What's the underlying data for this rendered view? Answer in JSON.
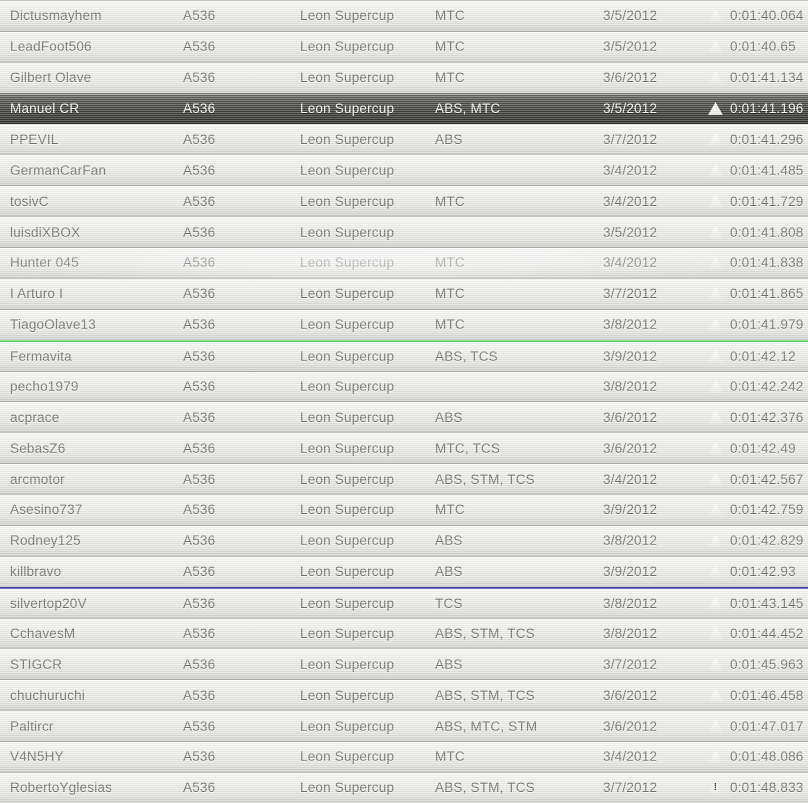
{
  "leaderboard": {
    "car_column_value": "A536",
    "event_column_value": "Leon Supercup",
    "colors": {
      "selected_row_bg": "#363632",
      "green_divider": "#5ed05e",
      "blue_divider": "#3434ae",
      "row_text": "#6b6b69",
      "selected_row_text": "#f5f5f3"
    },
    "warning_icon": {
      "name": "warning-triangle-icon",
      "glyph": "!"
    },
    "rows": [
      {
        "gamertag": "Dictusmayhem",
        "car": "A536",
        "event": "Leon Supercup",
        "assists": "MTC",
        "date": "3/5/2012",
        "time": "0:01:40.064",
        "state": "normal",
        "divider_before": "",
        "warning": false
      },
      {
        "gamertag": "LeadFoot506",
        "car": "A536",
        "event": "Leon Supercup",
        "assists": "MTC",
        "date": "3/5/2012",
        "time": "0:01:40.65",
        "state": "normal",
        "divider_before": "",
        "warning": false
      },
      {
        "gamertag": "Gilbert Olave",
        "car": "A536",
        "event": "Leon Supercup",
        "assists": "MTC",
        "date": "3/6/2012",
        "time": "0:01:41.134",
        "state": "normal",
        "divider_before": "",
        "warning": false
      },
      {
        "gamertag": "Manuel CR",
        "car": "A536",
        "event": "Leon Supercup",
        "assists": "ABS, MTC",
        "date": "3/5/2012",
        "time": "0:01:41.196",
        "state": "selected",
        "divider_before": "",
        "warning": false
      },
      {
        "gamertag": "PPEVIL",
        "car": "A536",
        "event": "Leon Supercup",
        "assists": "ABS",
        "date": "3/7/2012",
        "time": "0:01:41.296",
        "state": "normal",
        "divider_before": "",
        "warning": false
      },
      {
        "gamertag": "GermanCarFan",
        "car": "A536",
        "event": "Leon Supercup",
        "assists": "",
        "date": "3/4/2012",
        "time": "0:01:41.485",
        "state": "normal",
        "divider_before": "",
        "warning": false
      },
      {
        "gamertag": "tosivC",
        "car": "A536",
        "event": "Leon Supercup",
        "assists": "MTC",
        "date": "3/4/2012",
        "time": "0:01:41.729",
        "state": "normal",
        "divider_before": "",
        "warning": false
      },
      {
        "gamertag": "luisdiXBOX",
        "car": "A536",
        "event": "Leon Supercup",
        "assists": "",
        "date": "3/5/2012",
        "time": "0:01:41.808",
        "state": "normal",
        "divider_before": "",
        "warning": false
      },
      {
        "gamertag": "Hunter 045",
        "car": "A536",
        "event": "Leon Supercup",
        "assists": "MTC",
        "date": "3/4/2012",
        "time": "0:01:41.838",
        "state": "sheen",
        "divider_before": "",
        "warning": false
      },
      {
        "gamertag": "I Arturo I",
        "car": "A536",
        "event": "Leon Supercup",
        "assists": "MTC",
        "date": "3/7/2012",
        "time": "0:01:41.865",
        "state": "normal",
        "divider_before": "",
        "warning": false
      },
      {
        "gamertag": "TiagoOlave13",
        "car": "A536",
        "event": "Leon Supercup",
        "assists": "MTC",
        "date": "3/8/2012",
        "time": "0:01:41.979",
        "state": "normal",
        "divider_before": "",
        "warning": false
      },
      {
        "gamertag": "Fermavita",
        "car": "A536",
        "event": "Leon Supercup",
        "assists": "ABS, TCS",
        "date": "3/9/2012",
        "time": "0:01:42.12",
        "state": "normal",
        "divider_before": "green",
        "warning": false
      },
      {
        "gamertag": "pecho1979",
        "car": "A536",
        "event": "Leon Supercup",
        "assists": "",
        "date": "3/8/2012",
        "time": "0:01:42.242",
        "state": "normal",
        "divider_before": "",
        "warning": false
      },
      {
        "gamertag": "acprace",
        "car": "A536",
        "event": "Leon Supercup",
        "assists": "ABS",
        "date": "3/6/2012",
        "time": "0:01:42.376",
        "state": "normal",
        "divider_before": "",
        "warning": false
      },
      {
        "gamertag": "SebasZ6",
        "car": "A536",
        "event": "Leon Supercup",
        "assists": "MTC, TCS",
        "date": "3/6/2012",
        "time": "0:01:42.49",
        "state": "normal",
        "divider_before": "",
        "warning": false
      },
      {
        "gamertag": "arcmotor",
        "car": "A536",
        "event": "Leon Supercup",
        "assists": "ABS, STM, TCS",
        "date": "3/4/2012",
        "time": "0:01:42.567",
        "state": "normal",
        "divider_before": "",
        "warning": false
      },
      {
        "gamertag": "Asesino737",
        "car": "A536",
        "event": "Leon Supercup",
        "assists": "MTC",
        "date": "3/9/2012",
        "time": "0:01:42.759",
        "state": "normal",
        "divider_before": "",
        "warning": false
      },
      {
        "gamertag": "Rodney125",
        "car": "A536",
        "event": "Leon Supercup",
        "assists": "ABS",
        "date": "3/8/2012",
        "time": "0:01:42.829",
        "state": "normal",
        "divider_before": "",
        "warning": false
      },
      {
        "gamertag": "killbravo",
        "car": "A536",
        "event": "Leon Supercup",
        "assists": "ABS",
        "date": "3/9/2012",
        "time": "0:01:42.93",
        "state": "normal",
        "divider_before": "",
        "warning": false
      },
      {
        "gamertag": "silvertop20V",
        "car": "A536",
        "event": "Leon Supercup",
        "assists": "TCS",
        "date": "3/8/2012",
        "time": "0:01:43.145",
        "state": "normal",
        "divider_before": "blue",
        "warning": false
      },
      {
        "gamertag": "CchavesM",
        "car": "A536",
        "event": "Leon Supercup",
        "assists": "ABS, STM, TCS",
        "date": "3/8/2012",
        "time": "0:01:44.452",
        "state": "normal",
        "divider_before": "",
        "warning": false
      },
      {
        "gamertag": "STIGCR",
        "car": "A536",
        "event": "Leon Supercup",
        "assists": "ABS",
        "date": "3/7/2012",
        "time": "0:01:45.963",
        "state": "normal",
        "divider_before": "",
        "warning": false
      },
      {
        "gamertag": "chuchuruchi",
        "car": "A536",
        "event": "Leon Supercup",
        "assists": "ABS, STM, TCS",
        "date": "3/6/2012",
        "time": "0:01:46.458",
        "state": "normal",
        "divider_before": "",
        "warning": false
      },
      {
        "gamertag": "Paltircr",
        "car": "A536",
        "event": "Leon Supercup",
        "assists": "ABS, MTC, STM",
        "date": "3/6/2012",
        "time": "0:01:47.017",
        "state": "normal",
        "divider_before": "",
        "warning": false
      },
      {
        "gamertag": "V4N5HY",
        "car": "A536",
        "event": "Leon Supercup",
        "assists": "MTC",
        "date": "3/4/2012",
        "time": "0:01:48.086",
        "state": "normal",
        "divider_before": "",
        "warning": false
      },
      {
        "gamertag": "RobertoYglesias",
        "car": "A536",
        "event": "Leon Supercup",
        "assists": "ABS, STM, TCS",
        "date": "3/7/2012",
        "time": "0:01:48.833",
        "state": "normal",
        "divider_before": "",
        "warning": true
      }
    ]
  }
}
